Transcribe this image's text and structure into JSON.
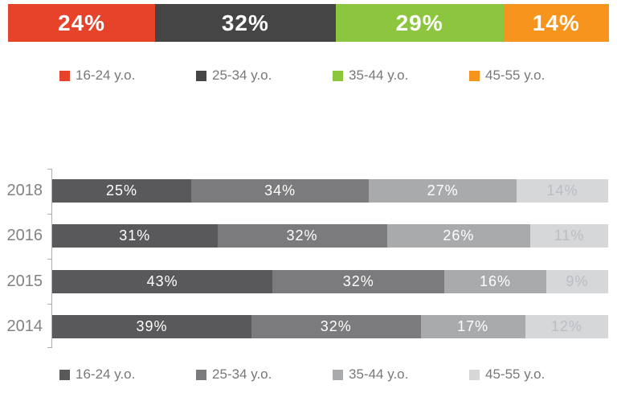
{
  "chart_data": [
    {
      "type": "bar",
      "orientation": "horizontal-stacked",
      "title": "",
      "categories": [
        "16-24 y.o.",
        "25-34 y.o.",
        "35-44 y.o.",
        "45-55 y.o."
      ],
      "values": [
        24,
        32,
        29,
        14
      ],
      "labels": [
        "24%",
        "32%",
        "29%",
        "14%"
      ],
      "colors": [
        "#E7432B",
        "#454545",
        "#8CC63F",
        "#F7941E"
      ],
      "legend": [
        "16-24 y.o.",
        "25-34 y.o.",
        "35-44 y.o.",
        "45-55 y.o."
      ],
      "legend_position": "below",
      "value_suffix": "%"
    },
    {
      "type": "bar",
      "orientation": "horizontal-stacked",
      "title": "",
      "categories": [
        "2018",
        "2016",
        "2015",
        "2014"
      ],
      "series": [
        {
          "name": "16-24 y.o.",
          "values": [
            25,
            31,
            43,
            39
          ]
        },
        {
          "name": "25-34 y.o.",
          "values": [
            34,
            32,
            32,
            32
          ]
        },
        {
          "name": "35-44 y.o.",
          "values": [
            27,
            26,
            16,
            17
          ]
        },
        {
          "name": "45-55 y.o.",
          "values": [
            14,
            11,
            9,
            12
          ]
        }
      ],
      "colors": [
        "#59595B",
        "#7B7B7D",
        "#A8AAAC",
        "#D5D7D8"
      ],
      "legend": [
        "16-24 y.o.",
        "25-34 y.o.",
        "35-44 y.o.",
        "45-55 y.o."
      ],
      "legend_position": "below",
      "value_suffix": "%",
      "xlim": [
        0,
        100
      ],
      "grid": false
    }
  ],
  "style": {
    "legend_text_color": "#77787B",
    "year_label_color": "#808285",
    "axis_color": "#ABADAF",
    "bar_label_color": "#FFFFFF",
    "light_segment_label_color": "#B8BEC4"
  }
}
